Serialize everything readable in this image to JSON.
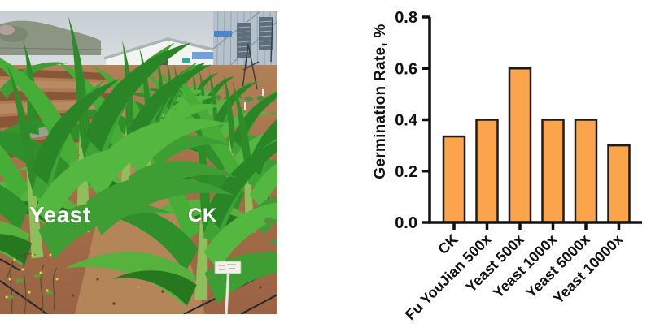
{
  "photo": {
    "left_label": "Yeast",
    "right_label": "CK",
    "description": "field trial photo of maize seedlings, two labeled rows, white plant marker, farm buildings in background"
  },
  "chart_data": {
    "type": "bar",
    "title": "",
    "xlabel": "",
    "ylabel": "Germination Rate, %",
    "categories": [
      "CK",
      "Fu YouJian 500x",
      "Yeast 500x",
      "Yeast 1000x",
      "Yeast 5000x",
      "Yeast 10000x"
    ],
    "values": [
      0.335,
      0.4,
      0.6,
      0.4,
      0.4,
      0.3
    ],
    "ylim": [
      0,
      0.8
    ],
    "yticks": [
      0,
      0.2,
      0.4,
      0.6,
      0.8
    ],
    "ytick_labels": [
      "0.0",
      "0.2",
      "0.4",
      "0.6",
      "0.8"
    ],
    "x_tick_rotation_deg": 45,
    "grid": false,
    "legend": "none",
    "bar_fill": "#FBA44C",
    "bar_stroke": "#1C1C1C",
    "axis_color": "#111111"
  }
}
